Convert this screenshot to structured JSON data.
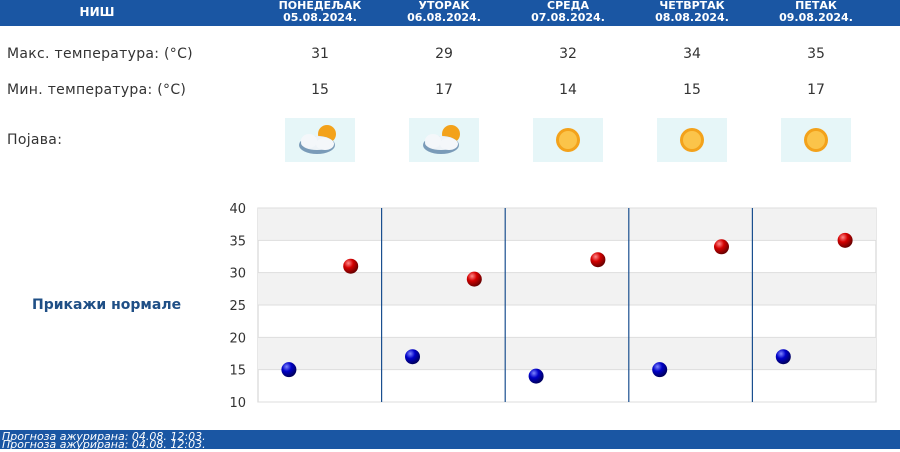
{
  "header": {
    "city": "НИШ"
  },
  "days": [
    {
      "name": "ПОНЕДЕЉАК",
      "date": "05.08.2024.",
      "max": "31",
      "min": "15",
      "icon": "sun-behind-clouds-icon"
    },
    {
      "name": "УТОРАК",
      "date": "06.08.2024.",
      "max": "29",
      "min": "17",
      "icon": "sun-behind-clouds-icon"
    },
    {
      "name": "СРЕДА",
      "date": "07.08.2024.",
      "max": "32",
      "min": "14",
      "icon": "sun-icon"
    },
    {
      "name": "ЧЕТВРТАК",
      "date": "08.08.2024.",
      "max": "34",
      "min": "15",
      "icon": "sun-icon"
    },
    {
      "name": "ПЕТАК",
      "date": "09.08.2024.",
      "max": "35",
      "min": "17",
      "icon": "sun-icon"
    }
  ],
  "rows": {
    "max_label": "Макс. температура: (°C)",
    "min_label": "Мин. температура: (°C)",
    "phenomenon_label": "Појава:"
  },
  "normals_link": "Прикажи нормале",
  "chart_data": {
    "type": "scatter",
    "x": [
      "05.08.2024.",
      "06.08.2024.",
      "07.08.2024.",
      "08.08.2024.",
      "09.08.2024."
    ],
    "series": [
      {
        "values": [
          31,
          29,
          32,
          34,
          35
        ],
        "color": "#cc0000"
      },
      {
        "values": [
          15,
          17,
          14,
          15,
          17
        ],
        "color": "#0000bb"
      }
    ],
    "y_ticks": [
      "10",
      "15",
      "20",
      "25",
      "30",
      "35",
      "40"
    ],
    "ylim": [
      10,
      40
    ],
    "grid": true
  },
  "footer": {
    "line1": "Прогноза ажурирана:  04.08. 12:03.",
    "line2": "Прогноза ажурирана:  04.08. 12:03."
  },
  "colors": {
    "header_bg": "#1a56a3",
    "icon_bg": "#e6f6f8",
    "link": "#1f4f86"
  }
}
